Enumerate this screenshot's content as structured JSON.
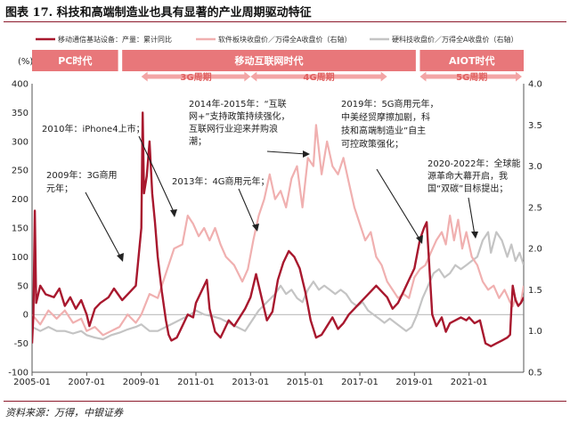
{
  "figure": {
    "title": "图表 17.  科技和高端制造业也具有显著的产业周期驱动特征",
    "source": "资料来源：万得，中银证券"
  },
  "chart_data": {
    "type": "line",
    "yleft": {
      "unit_label": "(%)",
      "range": [
        -100,
        400
      ],
      "ticks": [
        "-100",
        "-50",
        "0",
        "50",
        "100",
        "150",
        "200",
        "250",
        "300",
        "350",
        "400"
      ]
    },
    "yright": {
      "range": [
        0.5,
        4.0
      ],
      "ticks": [
        "0.5",
        "1.0",
        "1.5",
        "2.0",
        "2.5",
        "3.0",
        "3.5",
        "4.0"
      ]
    },
    "x": {
      "range": [
        2005.0,
        2023.0
      ],
      "ticks": [
        "2005-01",
        "2007-01",
        "2009-01",
        "2011-01",
        "2013-01",
        "2015-01",
        "2017-01",
        "2019-01",
        "2021-01"
      ]
    },
    "legend": [
      "移动通信基站设备：产量：累计同比",
      "软件板块收盘价／万得全A收盘价（右轴）",
      "硬科技收盘价／万得全A收盘价（右轴）"
    ],
    "colors": {
      "base_station": "#a8182e",
      "software": "#f0b0b0",
      "hardtech": "#c4c4c4",
      "era_bar": "#e8777a",
      "cycle_arrow": "#f3a5a5"
    },
    "eras": [
      {
        "label": "PC时代",
        "start": 2005.0,
        "end": 2008.15
      },
      {
        "label": "移动互联网时代",
        "start": 2008.3,
        "end": 2019.05
      },
      {
        "label": "AIOT时代",
        "start": 2019.2,
        "end": 2023.0
      }
    ],
    "cycles": [
      {
        "label": "3G周期",
        "start": 2009.0,
        "end": 2013.0
      },
      {
        "label": "4G周期",
        "start": 2013.0,
        "end": 2018.0
      },
      {
        "label": "5G周期",
        "start": 2019.2,
        "end": 2023.0
      }
    ],
    "annotations": [
      {
        "lines": [
          "2010年：iPhone4上市；"
        ]
      },
      {
        "lines": [
          "2014年-2015年：“互联",
          "网+”支持政策持续强化，",
          "互联网行业迎来并购浪",
          "潮；"
        ]
      },
      {
        "lines": [
          "2019年：5G商用元年，",
          "中美经贸摩擦加剧，科",
          "技和高端制造业”自主",
          "可控政策强化；"
        ]
      },
      {
        "lines": [
          "2009年：3G商用",
          "元年；"
        ]
      },
      {
        "lines": [
          "2013年：4G商用元年；"
        ]
      },
      {
        "lines": [
          "2020-2022年：全球能",
          "源革命大幕开启，我",
          "国“双碳”目标提出；"
        ]
      }
    ],
    "series": [
      {
        "key": "base_station",
        "axis": "left",
        "name": "移动通信基站设备：产量：累计同比",
        "points": [
          [
            2005.0,
            -50
          ],
          [
            2005.05,
            0
          ],
          [
            2005.1,
            180
          ],
          [
            2005.15,
            20
          ],
          [
            2005.3,
            50
          ],
          [
            2005.5,
            35
          ],
          [
            2005.8,
            30
          ],
          [
            2006.0,
            45
          ],
          [
            2006.2,
            15
          ],
          [
            2006.4,
            30
          ],
          [
            2006.6,
            10
          ],
          [
            2006.8,
            25
          ],
          [
            2007.0,
            0
          ],
          [
            2007.1,
            -20
          ],
          [
            2007.3,
            10
          ],
          [
            2007.5,
            20
          ],
          [
            2007.8,
            30
          ],
          [
            2008.0,
            45
          ],
          [
            2008.3,
            25
          ],
          [
            2008.6,
            40
          ],
          [
            2008.8,
            50
          ],
          [
            2009.0,
            150
          ],
          [
            2009.05,
            350
          ],
          [
            2009.1,
            210
          ],
          [
            2009.2,
            240
          ],
          [
            2009.3,
            300
          ],
          [
            2009.4,
            210
          ],
          [
            2009.5,
            160
          ],
          [
            2009.6,
            100
          ],
          [
            2009.75,
            40
          ],
          [
            2009.9,
            -10
          ],
          [
            2010.0,
            -35
          ],
          [
            2010.1,
            -45
          ],
          [
            2010.3,
            -40
          ],
          [
            2010.5,
            -20
          ],
          [
            2010.7,
            0
          ],
          [
            2010.9,
            -5
          ],
          [
            2011.0,
            20
          ],
          [
            2011.2,
            40
          ],
          [
            2011.4,
            60
          ],
          [
            2011.5,
            10
          ],
          [
            2011.7,
            -30
          ],
          [
            2011.9,
            -40
          ],
          [
            2012.0,
            -30
          ],
          [
            2012.2,
            -10
          ],
          [
            2012.4,
            -20
          ],
          [
            2012.6,
            -5
          ],
          [
            2012.8,
            10
          ],
          [
            2013.0,
            30
          ],
          [
            2013.2,
            70
          ],
          [
            2013.4,
            30
          ],
          [
            2013.6,
            -10
          ],
          [
            2013.8,
            5
          ],
          [
            2014.0,
            60
          ],
          [
            2014.2,
            90
          ],
          [
            2014.4,
            110
          ],
          [
            2014.6,
            100
          ],
          [
            2014.8,
            80
          ],
          [
            2015.0,
            40
          ],
          [
            2015.2,
            -10
          ],
          [
            2015.4,
            -40
          ],
          [
            2015.6,
            -35
          ],
          [
            2015.8,
            -20
          ],
          [
            2016.0,
            -5
          ],
          [
            2016.2,
            -25
          ],
          [
            2016.4,
            -15
          ],
          [
            2016.6,
            0
          ],
          [
            2016.8,
            10
          ],
          [
            2017.0,
            20
          ],
          [
            2017.2,
            30
          ],
          [
            2017.4,
            40
          ],
          [
            2017.6,
            50
          ],
          [
            2017.8,
            40
          ],
          [
            2018.0,
            30
          ],
          [
            2018.2,
            10
          ],
          [
            2018.4,
            20
          ],
          [
            2018.6,
            40
          ],
          [
            2018.8,
            60
          ],
          [
            2019.0,
            80
          ],
          [
            2019.2,
            130
          ],
          [
            2019.35,
            150
          ],
          [
            2019.45,
            160
          ],
          [
            2019.55,
            80
          ],
          [
            2019.65,
            0
          ],
          [
            2019.8,
            -20
          ],
          [
            2020.0,
            -5
          ],
          [
            2020.15,
            -30
          ],
          [
            2020.3,
            -15
          ],
          [
            2020.5,
            -10
          ],
          [
            2020.7,
            -5
          ],
          [
            2020.9,
            -10
          ],
          [
            2021.0,
            -5
          ],
          [
            2021.2,
            -15
          ],
          [
            2021.4,
            -10
          ],
          [
            2021.6,
            -50
          ],
          [
            2021.8,
            -55
          ],
          [
            2022.0,
            -50
          ],
          [
            2022.2,
            -45
          ],
          [
            2022.4,
            -40
          ],
          [
            2022.5,
            -35
          ],
          [
            2022.55,
            10
          ],
          [
            2022.6,
            50
          ],
          [
            2022.7,
            25
          ],
          [
            2022.8,
            15
          ],
          [
            2022.9,
            20
          ],
          [
            2023.0,
            30
          ]
        ]
      },
      {
        "key": "software",
        "axis": "right",
        "name": "软件板块收盘价／万得全A收盘价（右轴）",
        "points": [
          [
            2005.0,
            1.2
          ],
          [
            2005.3,
            1.08
          ],
          [
            2005.6,
            1.25
          ],
          [
            2005.9,
            1.15
          ],
          [
            2006.2,
            1.25
          ],
          [
            2006.5,
            1.1
          ],
          [
            2006.8,
            1.15
          ],
          [
            2007.0,
            1.0
          ],
          [
            2007.3,
            1.05
          ],
          [
            2007.6,
            0.95
          ],
          [
            2007.9,
            1.0
          ],
          [
            2008.2,
            1.05
          ],
          [
            2008.5,
            1.2
          ],
          [
            2008.8,
            1.1
          ],
          [
            2009.0,
            1.2
          ],
          [
            2009.3,
            1.45
          ],
          [
            2009.6,
            1.4
          ],
          [
            2009.9,
            1.7
          ],
          [
            2010.2,
            2.0
          ],
          [
            2010.5,
            2.05
          ],
          [
            2010.7,
            2.4
          ],
          [
            2010.9,
            2.3
          ],
          [
            2011.1,
            2.15
          ],
          [
            2011.3,
            2.25
          ],
          [
            2011.5,
            2.1
          ],
          [
            2011.7,
            2.25
          ],
          [
            2011.9,
            2.05
          ],
          [
            2012.1,
            1.9
          ],
          [
            2012.4,
            1.8
          ],
          [
            2012.7,
            1.6
          ],
          [
            2012.9,
            1.75
          ],
          [
            2013.1,
            2.1
          ],
          [
            2013.3,
            2.4
          ],
          [
            2013.5,
            2.6
          ],
          [
            2013.7,
            2.9
          ],
          [
            2013.9,
            2.6
          ],
          [
            2014.1,
            2.7
          ],
          [
            2014.3,
            2.5
          ],
          [
            2014.5,
            2.85
          ],
          [
            2014.7,
            3.0
          ],
          [
            2014.9,
            2.5
          ],
          [
            2015.1,
            3.1
          ],
          [
            2015.3,
            3.0
          ],
          [
            2015.4,
            3.5
          ],
          [
            2015.6,
            2.9
          ],
          [
            2015.8,
            3.3
          ],
          [
            2016.0,
            3.0
          ],
          [
            2016.2,
            2.9
          ],
          [
            2016.4,
            3.1
          ],
          [
            2016.6,
            2.8
          ],
          [
            2016.8,
            2.5
          ],
          [
            2017.0,
            2.3
          ],
          [
            2017.2,
            2.1
          ],
          [
            2017.4,
            2.2
          ],
          [
            2017.6,
            1.9
          ],
          [
            2017.8,
            1.8
          ],
          [
            2018.0,
            1.6
          ],
          [
            2018.2,
            1.5
          ],
          [
            2018.4,
            1.4
          ],
          [
            2018.6,
            1.45
          ],
          [
            2018.8,
            1.4
          ],
          [
            2019.0,
            1.65
          ],
          [
            2019.2,
            1.75
          ],
          [
            2019.4,
            1.8
          ],
          [
            2019.6,
            1.95
          ],
          [
            2019.8,
            2.1
          ],
          [
            2020.0,
            2.2
          ],
          [
            2020.15,
            2.05
          ],
          [
            2020.3,
            2.4
          ],
          [
            2020.45,
            2.1
          ],
          [
            2020.6,
            2.35
          ],
          [
            2020.75,
            2.0
          ],
          [
            2020.9,
            2.2
          ],
          [
            2021.1,
            1.9
          ],
          [
            2021.3,
            1.8
          ],
          [
            2021.5,
            1.6
          ],
          [
            2021.7,
            1.5
          ],
          [
            2021.9,
            1.55
          ],
          [
            2022.1,
            1.4
          ],
          [
            2022.3,
            1.5
          ],
          [
            2022.5,
            1.35
          ],
          [
            2022.6,
            1.3
          ],
          [
            2022.7,
            1.4
          ],
          [
            2022.8,
            1.3
          ],
          [
            2022.9,
            1.35
          ],
          [
            2023.0,
            1.55
          ]
        ]
      },
      {
        "key": "hardtech",
        "axis": "right",
        "name": "硬科技收盘价／万得全A收盘价（右轴）",
        "points": [
          [
            2005.0,
            1.05
          ],
          [
            2005.3,
            1.0
          ],
          [
            2005.6,
            1.05
          ],
          [
            2005.9,
            1.0
          ],
          [
            2006.2,
            1.0
          ],
          [
            2006.5,
            0.97
          ],
          [
            2006.8,
            1.0
          ],
          [
            2007.0,
            0.95
          ],
          [
            2007.3,
            0.92
          ],
          [
            2007.6,
            0.9
          ],
          [
            2007.9,
            0.95
          ],
          [
            2008.2,
            0.98
          ],
          [
            2008.5,
            1.02
          ],
          [
            2008.8,
            1.05
          ],
          [
            2009.0,
            1.08
          ],
          [
            2009.3,
            1.0
          ],
          [
            2009.6,
            1.0
          ],
          [
            2009.9,
            1.05
          ],
          [
            2010.2,
            1.1
          ],
          [
            2010.5,
            1.15
          ],
          [
            2010.8,
            1.2
          ],
          [
            2011.0,
            1.25
          ],
          [
            2011.3,
            1.2
          ],
          [
            2011.6,
            1.18
          ],
          [
            2011.9,
            1.15
          ],
          [
            2012.2,
            1.1
          ],
          [
            2012.5,
            1.05
          ],
          [
            2012.8,
            1.0
          ],
          [
            2013.0,
            1.1
          ],
          [
            2013.3,
            1.25
          ],
          [
            2013.6,
            1.35
          ],
          [
            2013.9,
            1.45
          ],
          [
            2014.1,
            1.55
          ],
          [
            2014.3,
            1.45
          ],
          [
            2014.5,
            1.5
          ],
          [
            2014.7,
            1.4
          ],
          [
            2014.9,
            1.35
          ],
          [
            2015.1,
            1.5
          ],
          [
            2015.3,
            1.6
          ],
          [
            2015.5,
            1.5
          ],
          [
            2015.7,
            1.55
          ],
          [
            2015.9,
            1.5
          ],
          [
            2016.1,
            1.45
          ],
          [
            2016.3,
            1.5
          ],
          [
            2016.5,
            1.45
          ],
          [
            2016.7,
            1.35
          ],
          [
            2016.9,
            1.3
          ],
          [
            2017.1,
            1.35
          ],
          [
            2017.3,
            1.25
          ],
          [
            2017.5,
            1.2
          ],
          [
            2017.7,
            1.15
          ],
          [
            2017.9,
            1.1
          ],
          [
            2018.1,
            1.15
          ],
          [
            2018.3,
            1.1
          ],
          [
            2018.5,
            1.05
          ],
          [
            2018.7,
            1.0
          ],
          [
            2018.9,
            1.05
          ],
          [
            2019.1,
            1.2
          ],
          [
            2019.3,
            1.4
          ],
          [
            2019.5,
            1.55
          ],
          [
            2019.7,
            1.7
          ],
          [
            2019.9,
            1.75
          ],
          [
            2020.1,
            1.65
          ],
          [
            2020.3,
            1.7
          ],
          [
            2020.5,
            1.8
          ],
          [
            2020.7,
            1.75
          ],
          [
            2020.9,
            1.8
          ],
          [
            2021.1,
            1.85
          ],
          [
            2021.3,
            1.9
          ],
          [
            2021.5,
            2.1
          ],
          [
            2021.7,
            2.2
          ],
          [
            2021.8,
            1.95
          ],
          [
            2022.0,
            2.2
          ],
          [
            2022.2,
            2.1
          ],
          [
            2022.4,
            1.9
          ],
          [
            2022.55,
            2.05
          ],
          [
            2022.7,
            1.85
          ],
          [
            2022.85,
            1.95
          ],
          [
            2023.0,
            1.8
          ]
        ]
      }
    ]
  }
}
